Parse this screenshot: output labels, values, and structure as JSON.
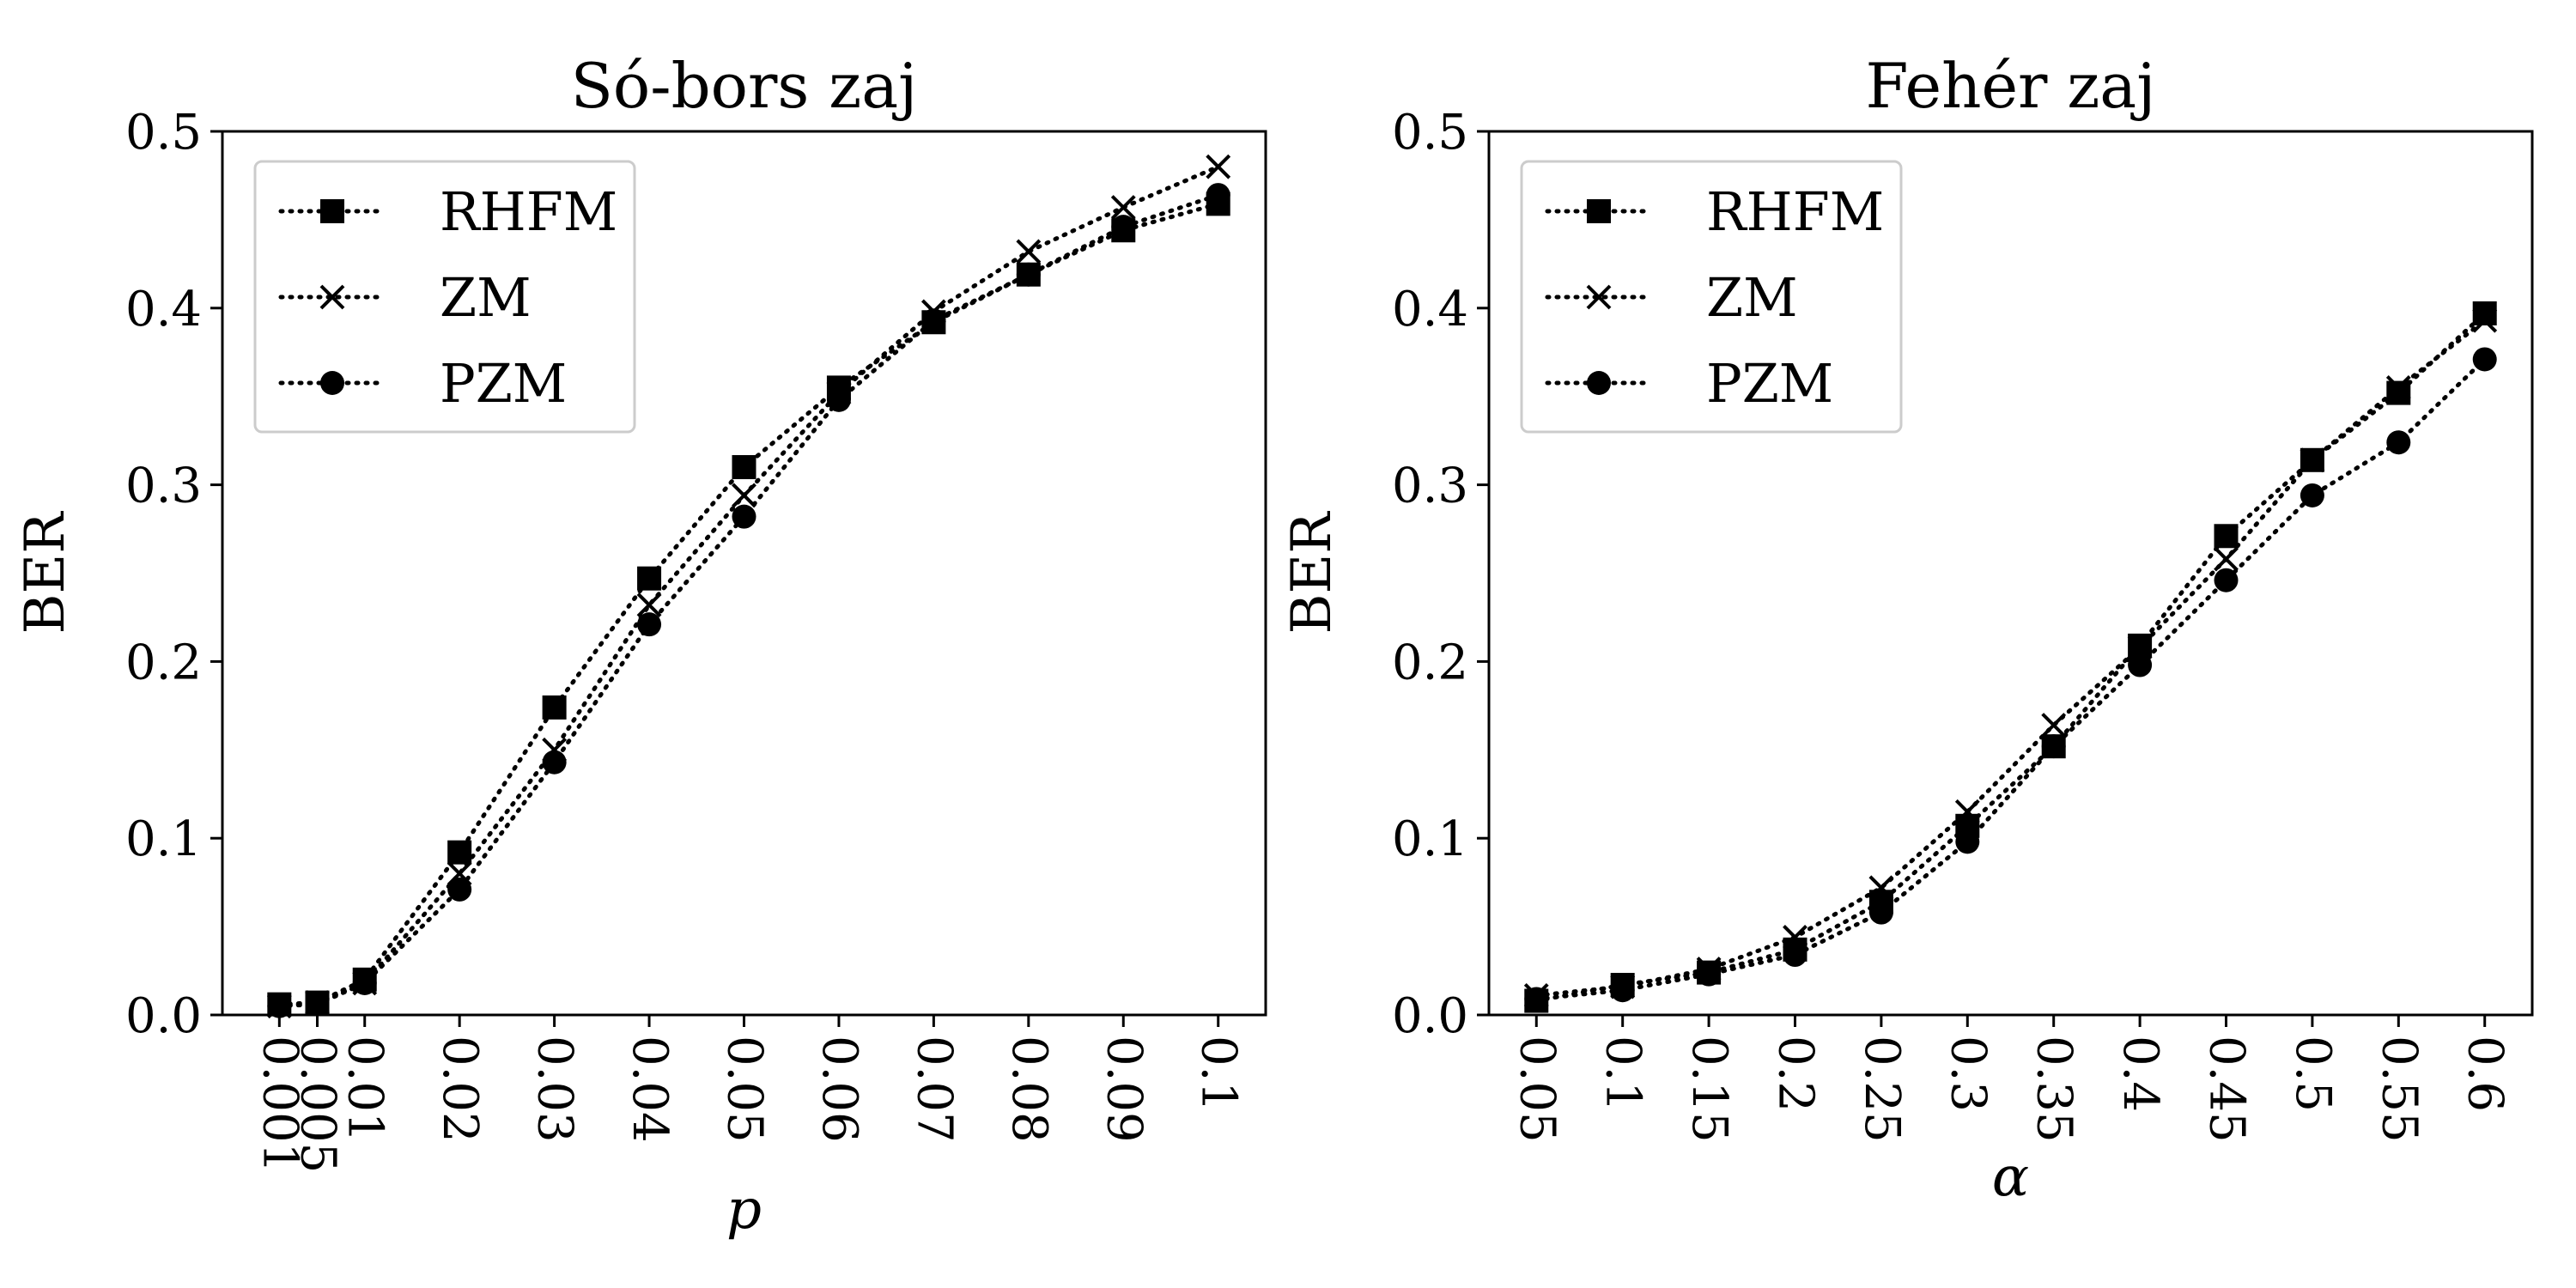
{
  "chart_data": [
    {
      "type": "line",
      "title": "Só-bors zaj",
      "xlabel": "p",
      "ylabel": "BER",
      "x": [
        0.001,
        0.005,
        0.01,
        0.02,
        0.03,
        0.04,
        0.05,
        0.06,
        0.07,
        0.08,
        0.09,
        0.1
      ],
      "x_tick_labels": [
        "0.001",
        "0.005",
        "0.01",
        "0.02",
        "0.03",
        "0.04",
        "0.05",
        "0.06",
        "0.07",
        "0.08",
        "0.09",
        "0.1"
      ],
      "ylim": [
        0.0,
        0.5
      ],
      "y_ticks": [
        0.0,
        0.1,
        0.2,
        0.3,
        0.4,
        0.5
      ],
      "y_tick_labels": [
        "0.0",
        "0.1",
        "0.2",
        "0.3",
        "0.4",
        "0.5"
      ],
      "legend_position": "top-left",
      "grid": false,
      "series": [
        {
          "name": "RHFM",
          "marker": "square",
          "values": [
            0.006,
            0.007,
            0.02,
            0.092,
            0.174,
            0.247,
            0.31,
            0.355,
            0.392,
            0.419,
            0.444,
            0.459
          ]
        },
        {
          "name": "ZM",
          "marker": "x",
          "values": [
            0.005,
            0.007,
            0.018,
            0.08,
            0.15,
            0.232,
            0.294,
            0.352,
            0.398,
            0.432,
            0.457,
            0.48
          ]
        },
        {
          "name": "PZM",
          "marker": "circle",
          "values": [
            0.005,
            0.006,
            0.018,
            0.071,
            0.143,
            0.221,
            0.282,
            0.348,
            0.393,
            0.419,
            0.446,
            0.464
          ]
        }
      ]
    },
    {
      "type": "line",
      "title": "Fehér zaj",
      "xlabel": "α",
      "ylabel": "BER",
      "x": [
        0.05,
        0.1,
        0.15,
        0.2,
        0.25,
        0.3,
        0.35,
        0.4,
        0.45,
        0.5,
        0.55,
        0.6
      ],
      "x_tick_labels": [
        "0.05",
        "0.1",
        "0.15",
        "0.2",
        "0.25",
        "0.3",
        "0.35",
        "0.4",
        "0.45",
        "0.5",
        "0.55",
        "0.6"
      ],
      "ylim": [
        0.0,
        0.5
      ],
      "y_ticks": [
        0.0,
        0.1,
        0.2,
        0.3,
        0.4,
        0.5
      ],
      "y_tick_labels": [
        "0.0",
        "0.1",
        "0.2",
        "0.3",
        "0.4",
        "0.5"
      ],
      "legend_position": "top-left",
      "grid": false,
      "series": [
        {
          "name": "RHFM",
          "marker": "square",
          "values": [
            0.008,
            0.017,
            0.024,
            0.037,
            0.064,
            0.107,
            0.152,
            0.209,
            0.271,
            0.314,
            0.352,
            0.397
          ]
        },
        {
          "name": "ZM",
          "marker": "x",
          "values": [
            0.011,
            0.016,
            0.026,
            0.044,
            0.072,
            0.115,
            0.164,
            0.208,
            0.258,
            0.314,
            0.355,
            0.393
          ]
        },
        {
          "name": "PZM",
          "marker": "circle",
          "values": [
            0.009,
            0.014,
            0.023,
            0.034,
            0.058,
            0.098,
            0.152,
            0.198,
            0.246,
            0.294,
            0.324,
            0.371
          ]
        }
      ]
    }
  ]
}
